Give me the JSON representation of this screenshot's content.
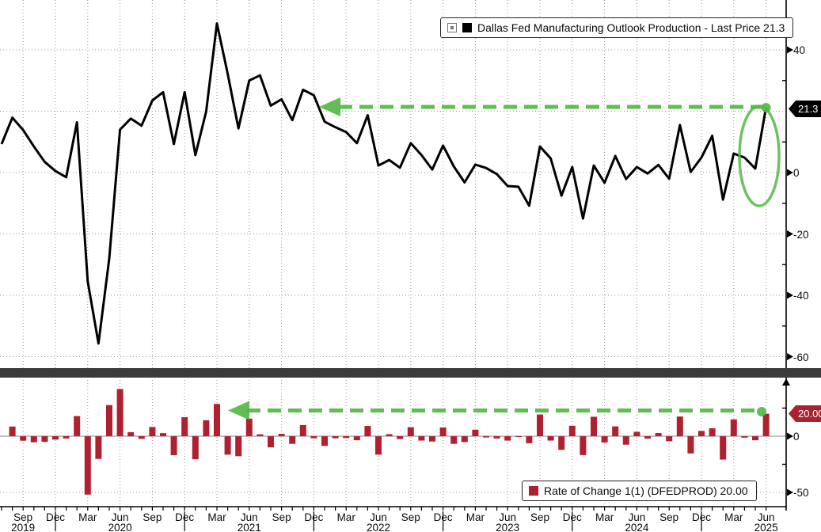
{
  "legend_top": {
    "swatch_color": "#000000",
    "label": "Dallas Fed Manufacturing Outlook Production - Last Price 21.3"
  },
  "legend_bottom": {
    "swatch_color": "#b02031",
    "label": "Rate of Change 1(1) (DFEDPROD) 20.00"
  },
  "badges": {
    "top_last_price": "21.3",
    "top_badge_color": "#000000",
    "bottom_last_value": "20.00",
    "bottom_badge_color": "#a8232f"
  },
  "colors": {
    "line": "#000000",
    "bars": "#b02031",
    "annotation_green": "#54b845",
    "grid": "#9a9a9a",
    "separator": "#3c3c3c",
    "axis": "#000000"
  },
  "axes": {
    "top_right_labels": [
      {
        "text": "40",
        "value": 40
      },
      {
        "text": "0",
        "value": 0
      },
      {
        "text": "-20",
        "value": -20
      },
      {
        "text": "-40",
        "value": -40
      },
      {
        "text": "-60",
        "value": -60
      }
    ],
    "bottom_right_labels": [
      {
        "text": "0",
        "value": 0
      },
      {
        "text": "-50",
        "value": -50
      }
    ]
  },
  "x_axis": {
    "ticks": [
      {
        "month": "Sep",
        "year": "2019"
      },
      {
        "month": "Dec"
      },
      {
        "month": "Mar"
      },
      {
        "month": "Jun",
        "year": "2020"
      },
      {
        "month": "Sep"
      },
      {
        "month": "Dec"
      },
      {
        "month": "Mar"
      },
      {
        "month": "Jun",
        "year": "2021"
      },
      {
        "month": "Sep"
      },
      {
        "month": "Dec"
      },
      {
        "month": "Mar"
      },
      {
        "month": "Jun",
        "year": "2022"
      },
      {
        "month": "Sep"
      },
      {
        "month": "Dec"
      },
      {
        "month": "Mar"
      },
      {
        "month": "Jun",
        "year": "2023"
      },
      {
        "month": "Sep"
      },
      {
        "month": "Dec"
      },
      {
        "month": "Mar"
      },
      {
        "month": "Jun",
        "year": "2024"
      },
      {
        "month": "Sep"
      },
      {
        "month": "Dec"
      },
      {
        "month": "Mar"
      },
      {
        "month": "Jun",
        "year": "2025"
      }
    ],
    "year_separator_tick_indices": [
      1,
      5,
      9,
      13,
      17,
      21
    ]
  },
  "chart_data": [
    {
      "type": "line",
      "name": "Dallas Fed Manufacturing Outlook Production",
      "last_price": 21.3,
      "start": "2019-07",
      "freq": "monthly",
      "ylim": [
        -65,
        56
      ],
      "gridlines_y": [
        40,
        20,
        0,
        -20,
        -40,
        -60
      ],
      "grid": "dotted",
      "legend_position": "top-right",
      "values": [
        9.3,
        17.9,
        13.9,
        8.5,
        3.5,
        0.5,
        -1.5,
        16.4,
        -35.5,
        -55.7,
        -28.0,
        14.0,
        17.6,
        15.3,
        23.5,
        26.2,
        9.3,
        26.2,
        5.7,
        19.9,
        48.6,
        32.2,
        14.4,
        30.0,
        31.7,
        21.8,
        23.9,
        17.1,
        27.0,
        25.2,
        16.6,
        14.8,
        13.2,
        9.6,
        18.7,
        2.3,
        4.1,
        1.6,
        9.6,
        5.7,
        1.0,
        8.8,
        2.0,
        -3.2,
        2.6,
        1.5,
        -0.5,
        -4.4,
        -4.6,
        -10.8,
        8.5,
        4.6,
        -7.5,
        1.8,
        -15.0,
        2.3,
        -3.3,
        5.4,
        -2.1,
        1.8,
        -0.3,
        2.5,
        -2.0,
        15.5,
        0.2,
        4.9,
        12.0,
        -8.8,
        6.2,
        4.9,
        1.3,
        21.3
      ],
      "annotations": {
        "dashed_arrow": {
          "y_value": 21.3,
          "from": "2025-06",
          "to": "2021-12",
          "direction": "left"
        },
        "ellipse_highlight": {
          "around": "2025-06 last point"
        }
      }
    },
    {
      "type": "bar",
      "name": "Rate of Change 1(1) (DFEDPROD)",
      "last_value": 20.0,
      "start": "2019-08",
      "freq": "monthly",
      "derived": "month-over-month difference of production series values",
      "ylim": [
        -62,
        52
      ],
      "gridlines_y": [
        0,
        -50
      ],
      "legend_position": "bottom-right",
      "annotations": {
        "dashed_arrow": {
          "y_value": 20.0,
          "from": "2025-06",
          "to": "2021-06",
          "direction": "left"
        }
      }
    }
  ]
}
